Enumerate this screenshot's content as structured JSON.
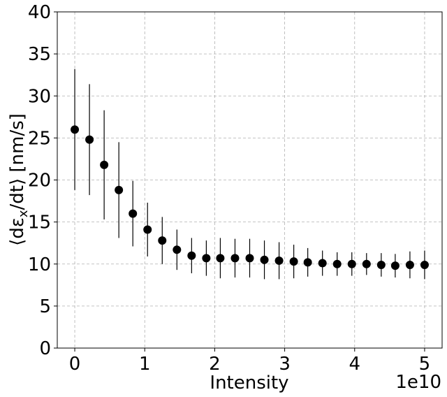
{
  "chart_data": {
    "type": "scatter",
    "xlabel": "Intensity",
    "ylabel_prefix": "⟨dε",
    "ylabel_sub": "x",
    "ylabel_suffix": "/dt⟩ [nm/s]",
    "x_offset_text": "1e10",
    "xlim": [
      -0.25,
      5.25
    ],
    "ylim": [
      0,
      40
    ],
    "x_ticks": [
      0,
      1,
      2,
      3,
      4,
      5
    ],
    "x_tick_labels": [
      "0",
      "1",
      "2",
      "3",
      "4",
      "5"
    ],
    "y_ticks": [
      0,
      5,
      10,
      15,
      20,
      25,
      30,
      35,
      40
    ],
    "y_tick_labels": [
      "0",
      "5",
      "10",
      "15",
      "20",
      "25",
      "30",
      "35",
      "40"
    ],
    "grid": true,
    "marker_color": "#000000",
    "points": [
      {
        "x": 0.0,
        "y": 26.0,
        "err": 7.2
      },
      {
        "x": 0.21,
        "y": 24.8,
        "err": 6.6
      },
      {
        "x": 0.42,
        "y": 21.8,
        "err": 6.5
      },
      {
        "x": 0.63,
        "y": 18.8,
        "err": 5.7
      },
      {
        "x": 0.83,
        "y": 16.0,
        "err": 3.9
      },
      {
        "x": 1.04,
        "y": 14.1,
        "err": 3.2
      },
      {
        "x": 1.25,
        "y": 12.8,
        "err": 2.8
      },
      {
        "x": 1.46,
        "y": 11.7,
        "err": 2.4
      },
      {
        "x": 1.67,
        "y": 11.0,
        "err": 2.1
      },
      {
        "x": 1.88,
        "y": 10.7,
        "err": 2.1
      },
      {
        "x": 2.08,
        "y": 10.7,
        "err": 2.4
      },
      {
        "x": 2.29,
        "y": 10.7,
        "err": 2.3
      },
      {
        "x": 2.5,
        "y": 10.7,
        "err": 2.3
      },
      {
        "x": 2.71,
        "y": 10.5,
        "err": 2.3
      },
      {
        "x": 2.92,
        "y": 10.4,
        "err": 2.2
      },
      {
        "x": 3.13,
        "y": 10.3,
        "err": 2.0
      },
      {
        "x": 3.33,
        "y": 10.2,
        "err": 1.7
      },
      {
        "x": 3.54,
        "y": 10.1,
        "err": 1.5
      },
      {
        "x": 3.75,
        "y": 10.0,
        "err": 1.4
      },
      {
        "x": 3.96,
        "y": 10.0,
        "err": 1.4
      },
      {
        "x": 4.17,
        "y": 10.0,
        "err": 1.3
      },
      {
        "x": 4.38,
        "y": 9.9,
        "err": 1.4
      },
      {
        "x": 4.58,
        "y": 9.8,
        "err": 1.4
      },
      {
        "x": 4.79,
        "y": 9.9,
        "err": 1.6
      },
      {
        "x": 5.0,
        "y": 9.9,
        "err": 1.7
      }
    ]
  }
}
